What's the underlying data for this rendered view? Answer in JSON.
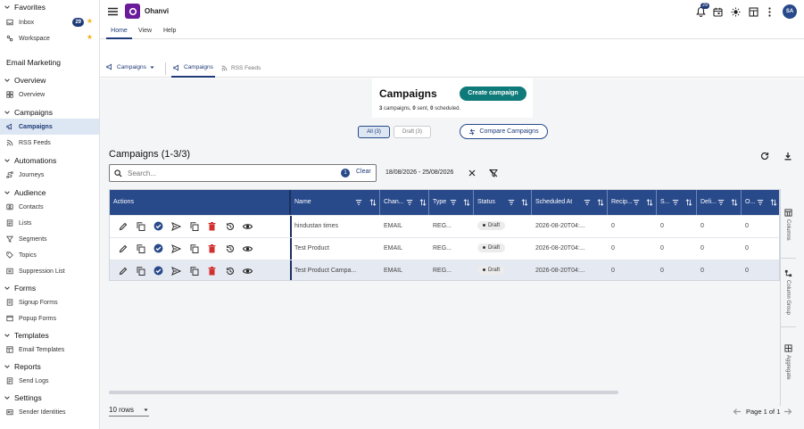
{
  "sidebar": {
    "favorites_title": "Favorites",
    "inbox_label": "Inbox",
    "inbox_count": "29",
    "workspace_label": "Workspace",
    "module_title": "Email Marketing",
    "sections": {
      "overview": {
        "title": "Overview",
        "items": [
          "Overview"
        ]
      },
      "campaigns": {
        "title": "Campaigns",
        "items": [
          "Campaigns",
          "RSS Feeds"
        ]
      },
      "automations": {
        "title": "Automations",
        "items": [
          "Journeys"
        ]
      },
      "audience": {
        "title": "Audience",
        "items": [
          "Contacts",
          "Lists",
          "Segments",
          "Topics",
          "Suppression List"
        ]
      },
      "forms": {
        "title": "Forms",
        "items": [
          "Signup Forms",
          "Popup Forms"
        ]
      },
      "templates": {
        "title": "Templates",
        "items": [
          "Email Templates"
        ]
      },
      "reports": {
        "title": "Reports",
        "items": [
          "Send Logs"
        ]
      },
      "settings": {
        "title": "Settings",
        "items": [
          "Sender Identities"
        ]
      }
    }
  },
  "header": {
    "app_name": "Ohanvi",
    "notification_count": "29",
    "avatar_initials": "SA",
    "menu_tabs": [
      "Home",
      "View",
      "Help"
    ]
  },
  "subnav": {
    "dropdown_label": "Campaigns",
    "tabs": [
      "Campaigns",
      "RSS Feeds"
    ]
  },
  "summary": {
    "title": "Campaigns",
    "create_label": "Create campaign",
    "stats": {
      "campaigns": "3",
      "campaigns_label": "campaigns,",
      "sent": "0",
      "sent_label": "sent,",
      "scheduled": "0",
      "scheduled_label": "scheduled."
    }
  },
  "filters": {
    "all_label": "All (3)",
    "draft_label": "Draft (3)",
    "compare_label": "Compare Campaigns"
  },
  "list": {
    "title": "Campaigns (1-3/3)",
    "search_placeholder": "Search...",
    "search_filter_count": "1",
    "clear_label": "Clear",
    "date_range": "18/08/2026 - 25/08/2026",
    "columns": [
      "Actions",
      "Name",
      "Chan...",
      "Type",
      "Status",
      "Scheduled At",
      "Recip...",
      "S...",
      "Deli...",
      "O..."
    ],
    "rows": [
      {
        "name": "hindustan times",
        "channel": "EMAIL",
        "type": "REG...",
        "status": "Draft",
        "scheduled_at": "2026-08-20T04:...",
        "recipients": "0",
        "sent": "0",
        "delivered": "0",
        "opened": "0"
      },
      {
        "name": "Test Product",
        "channel": "EMAIL",
        "type": "REG...",
        "status": "Draft",
        "scheduled_at": "2026-08-20T04:...",
        "recipients": "0",
        "sent": "0",
        "delivered": "0",
        "opened": "0"
      },
      {
        "name": "Test Product Campa...",
        "channel": "EMAIL",
        "type": "REG...",
        "status": "Draft",
        "scheduled_at": "2026-08-20T04:...",
        "recipients": "0",
        "sent": "0",
        "delivered": "0",
        "opened": "0"
      }
    ],
    "side_panels": [
      "Columns",
      "Column Group",
      "Aggregate"
    ],
    "page_size_label": "10 rows",
    "pagination_label": "Page 1 of 1"
  },
  "colors": {
    "primary": "#28498a",
    "brand": "#6a1b9a",
    "teal": "#0f7a7a",
    "danger": "#d32f2f"
  }
}
